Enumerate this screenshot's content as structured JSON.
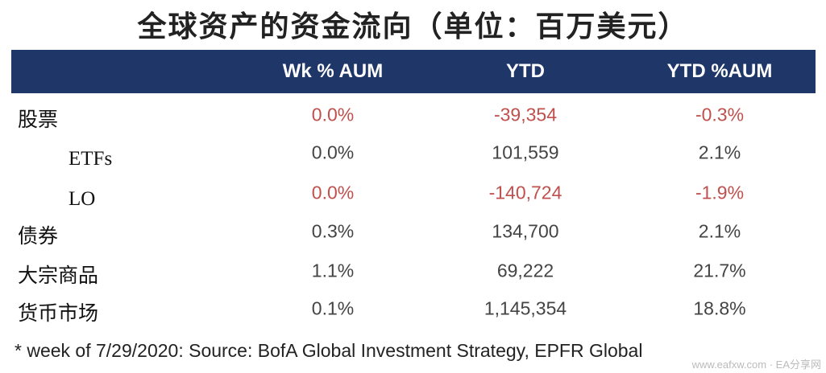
{
  "title": "全球资产的资金流向（单位：百万美元）",
  "table": {
    "columns": [
      "Wk % AUM",
      "YTD",
      "YTD %AUM"
    ],
    "rows": [
      {
        "label": "股票",
        "indent": false,
        "color": "#c0504d",
        "cells": [
          "0.0%",
          "-39,354",
          "-0.3%"
        ]
      },
      {
        "label": "ETFs",
        "indent": true,
        "color": "#444444",
        "cells": [
          "0.0%",
          "101,559",
          "2.1%"
        ]
      },
      {
        "label": "LO",
        "indent": true,
        "color": "#c0504d",
        "cells": [
          "0.0%",
          "-140,724",
          "-1.9%"
        ]
      },
      {
        "label": "债券",
        "indent": false,
        "color": "#444444",
        "cells": [
          "0.3%",
          "134,700",
          "2.1%"
        ]
      },
      {
        "label": "大宗商品",
        "indent": false,
        "color": "#444444",
        "cells": [
          "1.1%",
          "69,222",
          "21.7%"
        ]
      },
      {
        "label": "货币市场",
        "indent": false,
        "color": "#444444",
        "cells": [
          "0.1%",
          "1,145,354",
          "18.8%"
        ]
      }
    ]
  },
  "footnote": "* week of 7/29/2020: Source: BofA Global Investment Strategy, EPFR Global",
  "watermark": "www.eafxw.com · EA分享网"
}
